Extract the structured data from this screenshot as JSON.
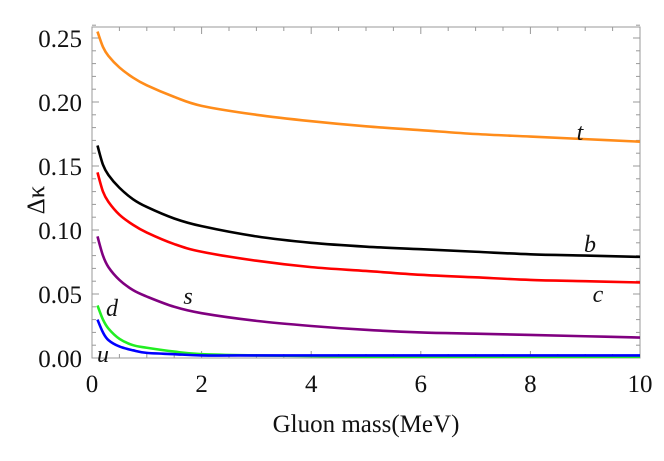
{
  "chart_data": {
    "type": "line",
    "title": "",
    "xlabel": "Gluon mass(MeV)",
    "ylabel": "Δκ",
    "xlim": [
      0,
      10
    ],
    "ylim": [
      0,
      0.26
    ],
    "grid": false,
    "xticks": [
      "0",
      "2",
      "4",
      "6",
      "8",
      "10"
    ],
    "yticks": [
      "0.00",
      "0.05",
      "0.10",
      "0.15",
      "0.20",
      "0.25"
    ],
    "x": [
      0.1,
      0.2,
      0.3,
      0.5,
      0.75,
      1,
      1.5,
      2,
      3,
      4,
      5,
      6,
      7,
      8,
      9,
      10
    ],
    "series": [
      {
        "name": "t",
        "color": "#ff8c1a",
        "values": [
          0.255,
          0.243,
          0.236,
          0.227,
          0.219,
          0.213,
          0.204,
          0.197,
          0.19,
          0.185,
          0.181,
          0.178,
          0.175,
          0.173,
          0.171,
          0.169
        ]
      },
      {
        "name": "b",
        "color": "#000000",
        "values": [
          0.166,
          0.151,
          0.143,
          0.133,
          0.124,
          0.118,
          0.109,
          0.103,
          0.095,
          0.09,
          0.087,
          0.085,
          0.083,
          0.081,
          0.08,
          0.079
        ]
      },
      {
        "name": "c",
        "color": "#ff0000",
        "values": [
          0.145,
          0.13,
          0.122,
          0.112,
          0.104,
          0.098,
          0.089,
          0.083,
          0.076,
          0.071,
          0.068,
          0.065,
          0.063,
          0.061,
          0.06,
          0.059
        ]
      },
      {
        "name": "s",
        "color": "#800080",
        "values": [
          0.095,
          0.08,
          0.071,
          0.061,
          0.053,
          0.048,
          0.04,
          0.035,
          0.029,
          0.025,
          0.022,
          0.02,
          0.019,
          0.018,
          0.017,
          0.016
        ]
      },
      {
        "name": "d",
        "color": "#22ee22",
        "values": [
          0.041,
          0.03,
          0.023,
          0.015,
          0.01,
          0.008,
          0.005,
          0.003,
          0.002,
          0.0015,
          0.001,
          0.001,
          0.001,
          0.001,
          0.001,
          0.001
        ]
      },
      {
        "name": "u",
        "color": "#0000ff",
        "values": [
          0.03,
          0.02,
          0.014,
          0.009,
          0.006,
          0.004,
          0.003,
          0.002,
          0.002,
          0.002,
          0.002,
          0.002,
          0.002,
          0.002,
          0.002,
          0.002
        ]
      }
    ]
  }
}
